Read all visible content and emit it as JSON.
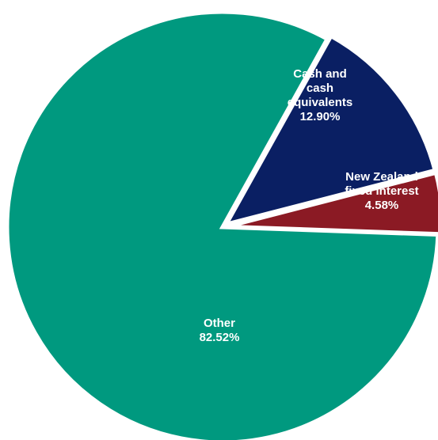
{
  "chart_data": {
    "type": "pie",
    "title": "",
    "slices": [
      {
        "label_lines": [
          "Cash and",
          "cash",
          "equivalents"
        ],
        "value_text": "12.90%",
        "value": 12.9,
        "color": "#0a1f63"
      },
      {
        "label_lines": [
          "New Zealand",
          "fixed interest"
        ],
        "value_text": "4.58%",
        "value": 4.58,
        "color": "#8b1a24"
      },
      {
        "label_lines": [
          "Other"
        ],
        "value_text": "82.52%",
        "value": 82.52,
        "color": "#00997f"
      }
    ],
    "start_angle_deg": 14,
    "direction": "clockwise-from-east-start",
    "legend": "none"
  }
}
